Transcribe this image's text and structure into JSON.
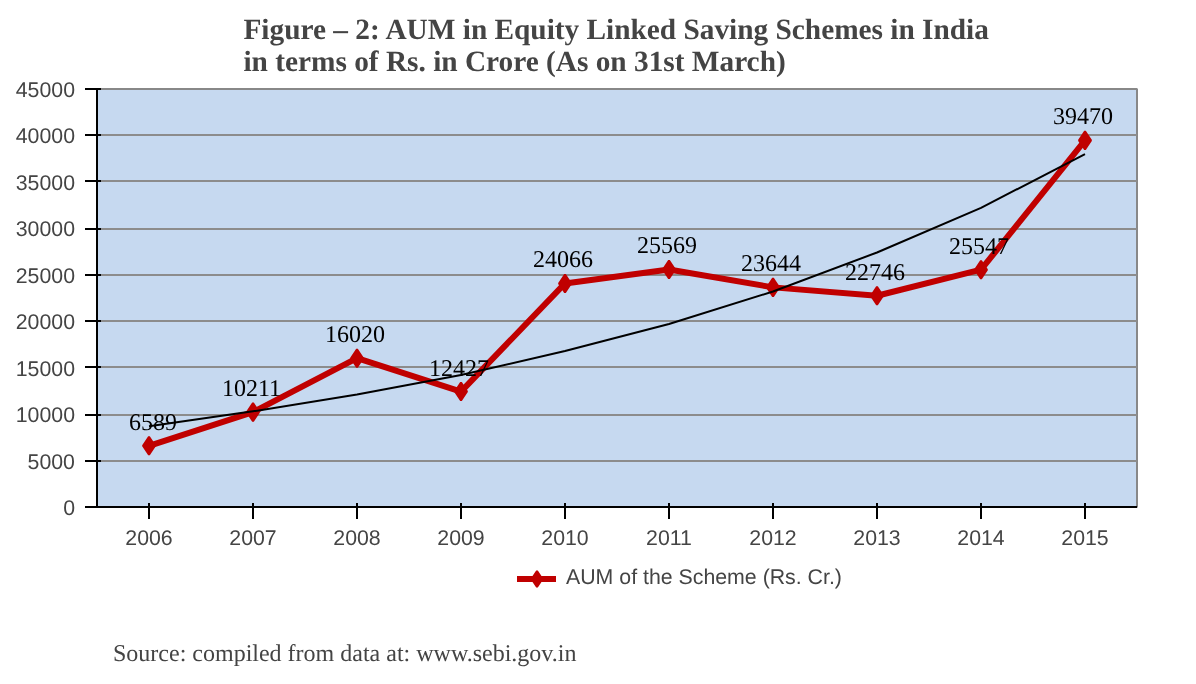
{
  "chart_data": {
    "type": "line",
    "title": "Figure – 2: AUM in Equity Linked Saving Schemes in India\nin terms of Rs. in Crore (As on 31st March)",
    "categories": [
      "2006",
      "2007",
      "2008",
      "2009",
      "2010",
      "2011",
      "2012",
      "2013",
      "2014",
      "2015"
    ],
    "series": [
      {
        "name": "AUM of the Scheme (Rs. Cr.)",
        "color": "#c00000",
        "values": [
          6589,
          10211,
          16020,
          12427,
          24066,
          25569,
          23644,
          22746,
          25547,
          39470
        ],
        "value_labels": [
          "6589",
          "10211",
          "16020",
          "12427",
          "24066",
          "25569",
          "23644",
          "22746",
          "25547",
          "39470"
        ],
        "marker": "diamond"
      },
      {
        "type": "line",
        "color": "#000000",
        "values": [
          8700,
          10300,
          12100,
          14200,
          16800,
          19700,
          23200,
          27400,
          32200,
          38000
        ],
        "marker": "none"
      }
    ],
    "ylim": [
      0,
      45000
    ],
    "yticks": [
      0,
      5000,
      10000,
      15000,
      20000,
      25000,
      30000,
      35000,
      40000,
      45000
    ],
    "grid": "y",
    "legend": "bottom",
    "line_style": "solid",
    "annotations": [
      "Source: compiled from data at: www.sebi.gov.in"
    ]
  }
}
